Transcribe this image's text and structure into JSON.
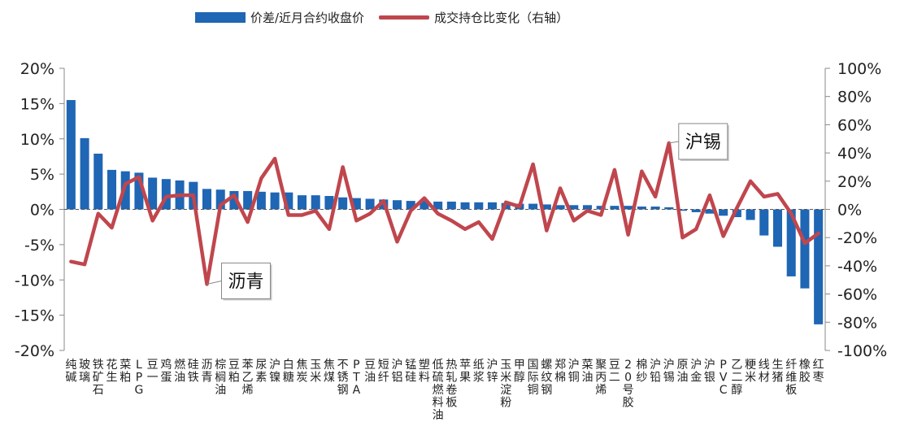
{
  "chart_data": {
    "type": "bar",
    "categories": [
      "纯碱",
      "玻璃",
      "铁矿石",
      "花生",
      "菜粕",
      "LPG",
      "豆一",
      "鸡蛋",
      "燃油",
      "硅铁",
      "沥青",
      "棕榈油",
      "豆粕",
      "苯乙烯",
      "尿素",
      "沪镍",
      "白糖",
      "焦炭",
      "玉米",
      "焦煤",
      "不锈钢",
      "PTA",
      "豆油",
      "短纤",
      "沪铝",
      "锰硅",
      "塑料",
      "低硫燃料油",
      "热轧卷板",
      "苹果",
      "纸浆",
      "沪锌",
      "玉米淀粉",
      "甲醇",
      "国际铜",
      "螺纹钢",
      "郑棉",
      "沪铜",
      "菜油",
      "聚丙烯",
      "豆二",
      "20号胶",
      "棉纱",
      "沪铅",
      "沪锡",
      "原油",
      "沪金",
      "沪银",
      "PVC",
      "乙二醇",
      "粳米",
      "线材",
      "生猪",
      "纤维板",
      "橡胶",
      "红枣"
    ],
    "series": [
      {
        "name": "价差/近月合约收盘价",
        "axis": "left",
        "values": [
          15.5,
          10.1,
          7.9,
          5.6,
          5.4,
          5.2,
          4.5,
          4.3,
          4.1,
          3.9,
          2.9,
          2.8,
          2.6,
          2.6,
          2.5,
          2.4,
          2.4,
          2.0,
          2.0,
          1.9,
          1.7,
          1.6,
          1.5,
          1.4,
          1.3,
          1.2,
          1.2,
          1.1,
          1.1,
          1.0,
          1.0,
          1.0,
          0.9,
          0.8,
          0.8,
          0.7,
          0.6,
          0.6,
          0.6,
          0.5,
          0.5,
          0.5,
          0.4,
          0.4,
          0.3,
          -0.2,
          -0.4,
          -0.6,
          -0.9,
          -1.1,
          -1.5,
          -3.7,
          -5.3,
          -9.5,
          -11.2,
          -16.3
        ]
      },
      {
        "name": "成交持仓比变化（右轴）",
        "axis": "right",
        "values": [
          -37,
          -39,
          -3,
          -13,
          18,
          23,
          -8,
          9,
          10,
          10,
          -53,
          3,
          10,
          -9,
          22,
          36,
          -4,
          -4,
          -1,
          -14,
          30,
          -8,
          -3,
          6,
          -23,
          -1,
          8,
          -3,
          -8,
          -14,
          -9,
          -21,
          5,
          2,
          32,
          -15,
          15,
          -8,
          -1,
          -4,
          28,
          -18,
          27,
          9,
          47,
          -20,
          -14,
          10,
          -19,
          1,
          20,
          9,
          11,
          -3,
          -24,
          -17
        ]
      }
    ],
    "ylim_left": [
      -20,
      20
    ],
    "ylim_right": [
      -100,
      100
    ],
    "yticks_left": [
      "20%",
      "15%",
      "10%",
      "5%",
      "0%",
      "-5%",
      "-10%",
      "-15%",
      "-20%"
    ],
    "yticks_right": [
      "100%",
      "80%",
      "60%",
      "40%",
      "20%",
      "0%",
      "-20%",
      "-40%",
      "-60%",
      "-80%",
      "-100%"
    ],
    "legend_position": "top",
    "colors": {
      "bar": "#1f66b4",
      "line": "#c0464d"
    },
    "annotations": [
      {
        "text": "沥青",
        "category": "沥青"
      },
      {
        "text": "沪锡",
        "category": "沪锡"
      }
    ]
  }
}
